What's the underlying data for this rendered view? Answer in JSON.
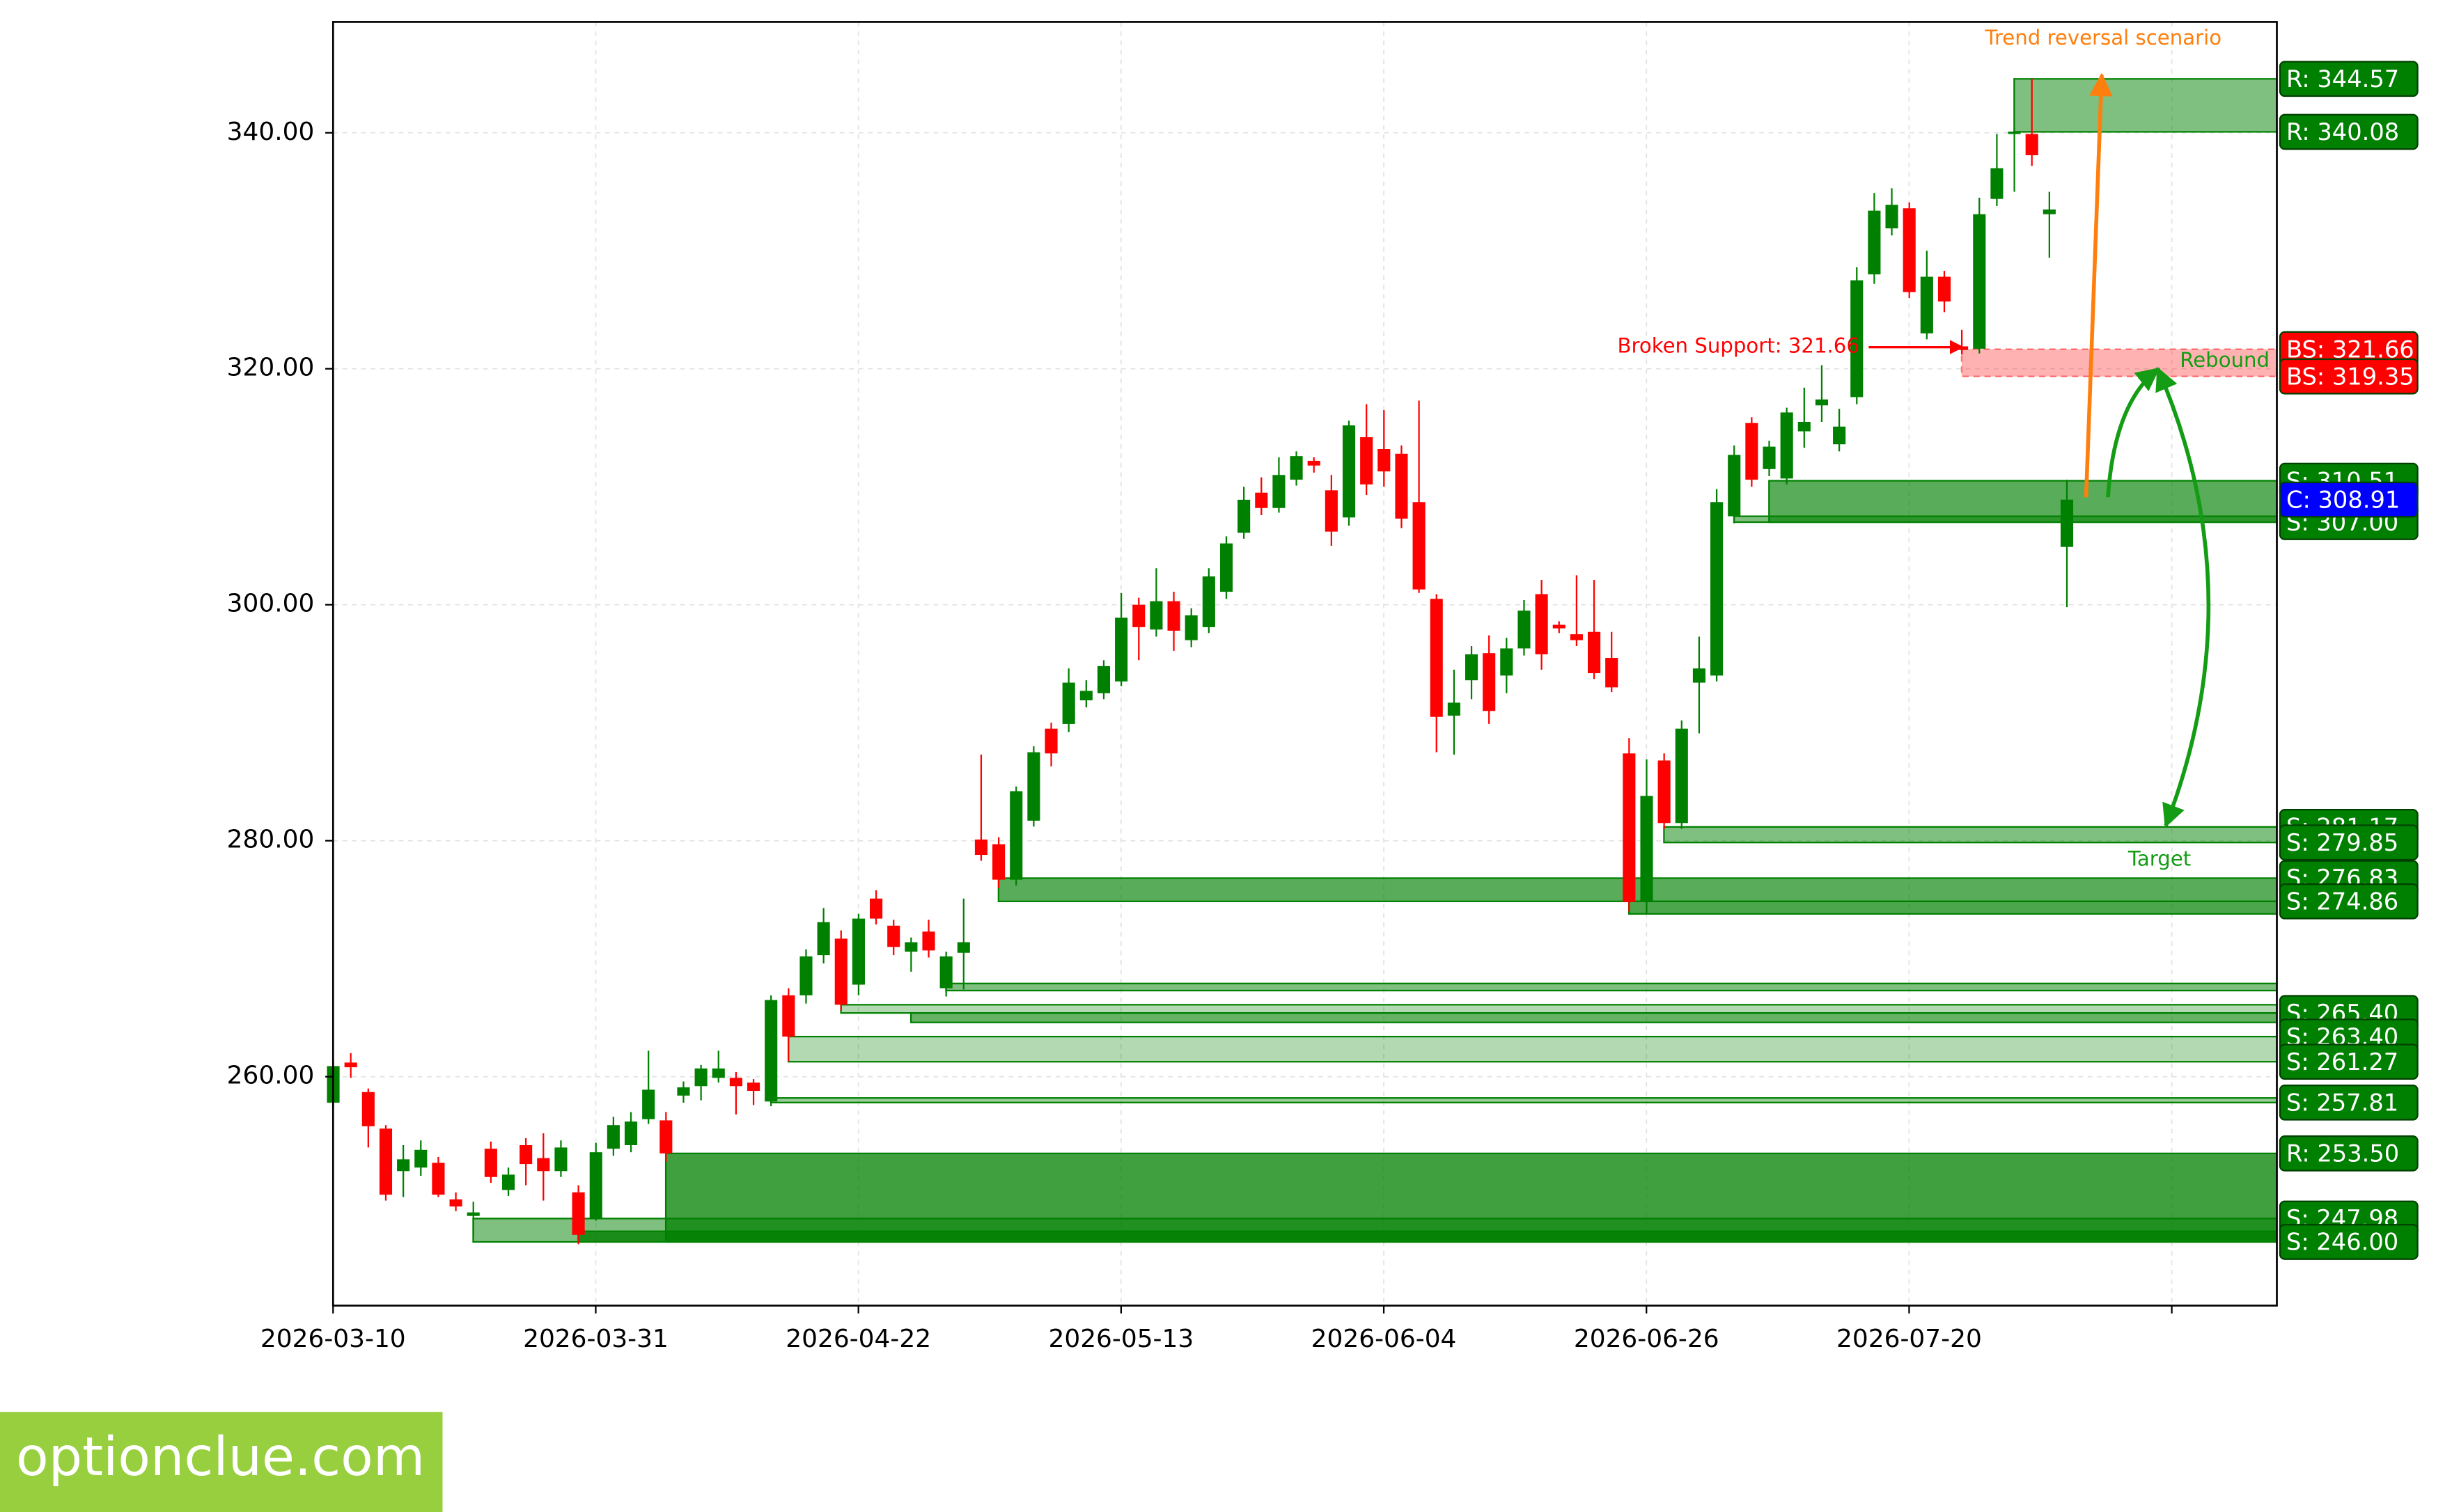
{
  "chart_data": {
    "type": "candlestick",
    "xlim": [
      0,
      111
    ],
    "xticks": [
      {
        "value": 0,
        "label": "2026-03-10"
      },
      {
        "value": 15,
        "label": "2026-03-31"
      },
      {
        "value": 30,
        "label": "2026-04-22"
      },
      {
        "value": 45,
        "label": "2026-05-13"
      },
      {
        "value": 60,
        "label": "2026-06-04"
      },
      {
        "value": 75,
        "label": "2026-06-26"
      },
      {
        "value": 90,
        "label": "2026-07-20"
      },
      {
        "value": 105,
        "label": null
      }
    ],
    "ylim": [
      240.6,
      349.4
    ],
    "yticks": [
      {
        "value": 260,
        "label": "260.00"
      },
      {
        "value": 280,
        "label": "280.00"
      },
      {
        "value": 300,
        "label": "300.00"
      },
      {
        "value": 320,
        "label": "320.00"
      },
      {
        "value": 340,
        "label": "340.00"
      }
    ],
    "grid": true,
    "up_color": "#008000",
    "down_color": "#ff0000",
    "open": [
      257.8,
      261.2,
      258.7,
      255.6,
      252.0,
      252.3,
      252.7,
      249.6,
      248.2,
      253.9,
      250.4,
      254.2,
      253.1,
      252.0,
      250.2,
      248.0,
      253.9,
      254.2,
      256.4,
      256.3,
      258.4,
      259.2,
      259.9,
      259.9,
      259.5,
      257.9,
      266.9,
      266.9,
      270.3,
      271.7,
      267.8,
      275.1,
      272.8,
      270.6,
      272.3,
      267.5,
      270.5,
      280.1,
      279.7,
      276.7,
      281.7,
      289.5,
      289.9,
      291.9,
      292.5,
      293.5,
      300.0,
      297.9,
      300.3,
      297.0,
      298.1,
      301.1,
      306.1,
      309.5,
      308.2,
      310.6,
      312.2,
      309.7,
      307.4,
      314.2,
      313.2,
      312.8,
      308.7,
      300.5,
      290.6,
      293.6,
      295.9,
      294.0,
      296.3,
      300.9,
      298.3,
      297.5,
      297.7,
      295.5,
      287.4,
      274.8,
      286.8,
      281.5,
      293.4,
      294.0,
      307.5,
      315.4,
      311.5,
      310.7,
      314.7,
      316.9,
      313.6,
      317.6,
      328.0,
      331.9,
      333.6,
      323.0,
      327.8,
      321.9,
      321.7,
      334.4,
      339.9,
      339.9,
      333.1,
      304.9
    ],
    "high": [
      261.3,
      262.0,
      259.0,
      255.9,
      254.2,
      254.6,
      253.2,
      250.2,
      249.4,
      254.5,
      252.3,
      254.8,
      255.2,
      254.6,
      250.8,
      254.4,
      256.6,
      257.0,
      262.2,
      257.0,
      259.6,
      261.0,
      262.2,
      260.4,
      259.8,
      266.9,
      267.5,
      270.8,
      274.3,
      272.4,
      273.8,
      275.8,
      273.3,
      271.8,
      273.3,
      270.6,
      275.1,
      287.3,
      280.3,
      284.6,
      288.0,
      290.0,
      294.6,
      293.6,
      295.3,
      301.0,
      300.6,
      303.1,
      301.1,
      299.7,
      303.1,
      305.8,
      310.0,
      310.8,
      312.5,
      313.0,
      312.5,
      311.0,
      315.6,
      317.0,
      316.5,
      313.5,
      317.3,
      300.9,
      294.5,
      296.5,
      297.4,
      297.2,
      300.4,
      302.1,
      298.6,
      302.5,
      302.1,
      297.7,
      288.7,
      286.9,
      287.4,
      290.2,
      297.3,
      309.8,
      313.5,
      315.9,
      313.9,
      316.7,
      318.4,
      320.3,
      316.6,
      328.6,
      334.9,
      335.3,
      334.1,
      330.0,
      328.3,
      323.3,
      334.5,
      339.9,
      340.4,
      344.57,
      335.0,
      310.6
    ],
    "low": [
      257.5,
      259.9,
      254.0,
      249.5,
      249.8,
      251.6,
      249.8,
      248.6,
      246.5,
      251.0,
      249.9,
      250.8,
      249.5,
      251.5,
      245.8,
      247.8,
      253.3,
      253.6,
      256.0,
      252.8,
      257.8,
      258.0,
      259.5,
      256.8,
      257.6,
      257.5,
      261.3,
      266.2,
      269.6,
      265.6,
      266.9,
      272.9,
      270.3,
      268.9,
      270.1,
      266.8,
      267.4,
      278.3,
      276.0,
      276.2,
      281.2,
      286.3,
      289.2,
      291.3,
      292.0,
      293.1,
      295.3,
      297.3,
      296.1,
      296.4,
      297.6,
      300.5,
      305.6,
      307.6,
      307.8,
      310.1,
      311.2,
      305.0,
      306.7,
      309.3,
      310.0,
      306.5,
      301.0,
      287.5,
      287.3,
      292.0,
      289.9,
      292.5,
      295.7,
      294.5,
      297.6,
      296.5,
      293.7,
      292.6,
      274.0,
      273.8,
      281.0,
      281.0,
      289.1,
      293.5,
      306.9,
      310.0,
      310.9,
      310.2,
      313.3,
      315.5,
      313.0,
      317.0,
      327.2,
      331.3,
      326.0,
      322.5,
      324.8,
      321.2,
      321.3,
      333.8,
      335.0,
      337.2,
      329.4,
      299.8
    ],
    "close": [
      260.9,
      260.8,
      255.8,
      250.0,
      253.0,
      253.8,
      250.0,
      249.0,
      248.5,
      251.5,
      251.7,
      252.6,
      252.0,
      254.0,
      246.6,
      253.6,
      255.9,
      256.2,
      258.9,
      253.5,
      259.1,
      260.7,
      260.7,
      259.2,
      258.8,
      266.5,
      263.4,
      270.2,
      273.1,
      266.1,
      273.4,
      273.4,
      271.0,
      271.4,
      270.7,
      270.2,
      271.4,
      278.8,
      276.7,
      284.2,
      287.5,
      287.4,
      293.4,
      292.7,
      294.8,
      298.9,
      298.1,
      300.3,
      297.8,
      299.1,
      302.4,
      305.2,
      308.9,
      308.2,
      311.0,
      312.6,
      311.8,
      306.2,
      315.2,
      310.2,
      311.3,
      307.3,
      301.3,
      290.5,
      291.7,
      295.8,
      291.0,
      296.3,
      299.5,
      295.8,
      298.0,
      297.0,
      294.2,
      293.0,
      274.8,
      283.8,
      281.5,
      289.5,
      294.6,
      308.7,
      312.7,
      310.6,
      313.4,
      316.3,
      315.5,
      317.4,
      315.1,
      327.5,
      333.4,
      333.9,
      326.5,
      327.8,
      325.7,
      321.6,
      333.1,
      337.0,
      340.1,
      338.1,
      333.5,
      308.91
    ],
    "zones": [
      {
        "start": 8,
        "low": 246.0,
        "high": 247.98,
        "color": "#008000",
        "alpha": 0.5
      },
      {
        "start": 14,
        "low": 246.0,
        "high": 246.9,
        "color": "#008000",
        "alpha": 0.8
      },
      {
        "start": 19,
        "low": 246.0,
        "high": 253.5,
        "color": "#008000",
        "alpha": 0.75
      },
      {
        "start": 25,
        "low": 257.81,
        "high": 258.2,
        "color": "#008000",
        "alpha": 0.4
      },
      {
        "start": 26,
        "low": 261.27,
        "high": 263.4,
        "color": "#008000",
        "alpha": 0.3
      },
      {
        "start": 29,
        "low": 265.4,
        "high": 266.1,
        "color": "#008000",
        "alpha": 0.3
      },
      {
        "start": 33,
        "low": 264.6,
        "high": 265.4,
        "color": "#008000",
        "alpha": 0.6
      },
      {
        "start": 35,
        "low": 267.3,
        "high": 267.9,
        "color": "#008000",
        "alpha": 0.5
      },
      {
        "start": 38,
        "low": 274.86,
        "high": 276.83,
        "color": "#008000",
        "alpha": 0.65
      },
      {
        "start": 74,
        "low": 273.8,
        "high": 274.86,
        "color": "#008000",
        "alpha": 0.7
      },
      {
        "start": 76,
        "low": 279.85,
        "high": 281.17,
        "color": "#008000",
        "alpha": 0.5
      },
      {
        "start": 80,
        "low": 307.0,
        "high": 307.5,
        "color": "#008000",
        "alpha": 0.5
      },
      {
        "start": 82,
        "low": 307.0,
        "high": 310.51,
        "color": "#008000",
        "alpha": 0.65
      },
      {
        "start": 93,
        "low": 319.35,
        "high": 321.66,
        "color": "#ff0000",
        "alpha": 0.3
      },
      {
        "start": 96,
        "low": 340.08,
        "high": 344.57,
        "color": "#008000",
        "alpha": 0.5
      }
    ],
    "levels": [
      {
        "value": 344.57,
        "label": "R: 344.57",
        "color": "#008000"
      },
      {
        "value": 340.08,
        "label": "R: 340.08",
        "color": "#008000"
      },
      {
        "value": 321.66,
        "label": "BS: 321.66",
        "color": "#ff0000"
      },
      {
        "value": 319.35,
        "label": "BS: 319.35",
        "color": "#ff0000"
      },
      {
        "value": 310.51,
        "label": "S: 310.51",
        "color": "#008000"
      },
      {
        "value": 307.0,
        "label": "S: 307.00",
        "color": "#008000"
      },
      {
        "value": 308.91,
        "label": "C: 308.91",
        "color": "#0000ff"
      },
      {
        "value": 281.17,
        "label": "S: 281.17",
        "color": "#008000"
      },
      {
        "value": 279.85,
        "label": "S: 279.85",
        "color": "#008000"
      },
      {
        "value": 276.83,
        "label": "S: 276.83",
        "color": "#008000"
      },
      {
        "value": 274.86,
        "label": "S: 274.86",
        "color": "#008000"
      },
      {
        "value": 265.4,
        "label": "S: 265.40",
        "color": "#008000"
      },
      {
        "value": 263.4,
        "label": "S: 263.40",
        "color": "#008000"
      },
      {
        "value": 261.27,
        "label": "S: 261.27",
        "color": "#008000"
      },
      {
        "value": 257.81,
        "label": "S: 257.81",
        "color": "#008000"
      },
      {
        "value": 253.5,
        "label": "R: 253.50",
        "color": "#008000"
      },
      {
        "value": 247.98,
        "label": "S: 247.98",
        "color": "#008000"
      },
      {
        "value": 246.0,
        "label": "S: 246.00",
        "color": "#008000"
      }
    ],
    "annotations": {
      "trend": "Trend reversal scenario",
      "broken": "Broken Support: 321.66",
      "rebound": "Rebound",
      "target": "Target"
    }
  },
  "watermark": "optionclue.com"
}
